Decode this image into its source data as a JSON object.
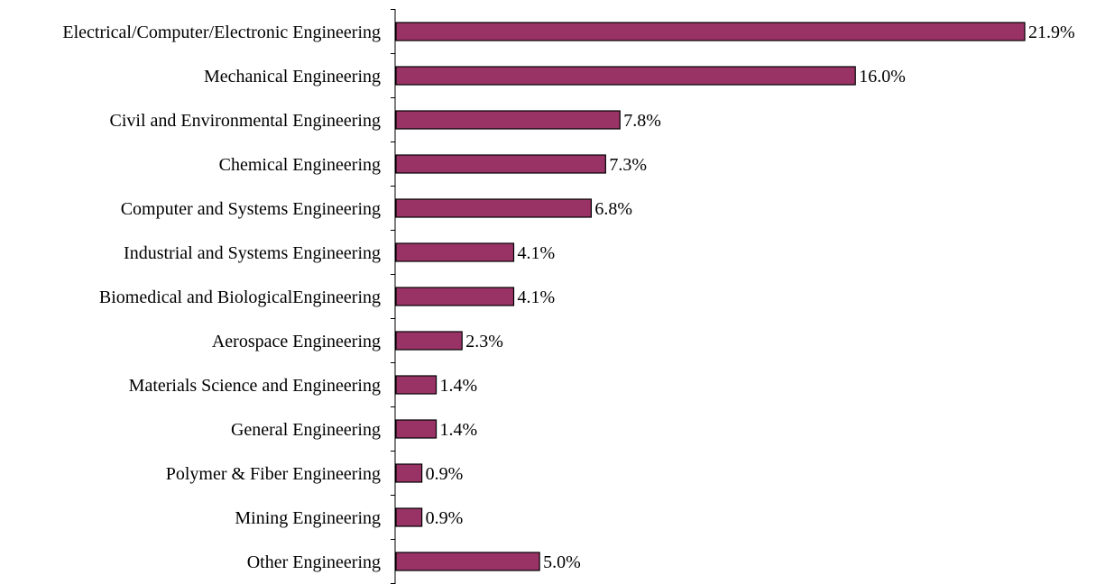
{
  "chart_data": {
    "type": "bar",
    "orientation": "horizontal",
    "categories": [
      "Electrical/Computer/Electronic Engineering",
      "Mechanical Engineering",
      "Civil and Environmental Engineering",
      "Chemical Engineering",
      "Computer and Systems Engineering",
      "Industrial and Systems Engineering",
      "Biomedical and BiologicalEngineering",
      "Aerospace Engineering",
      "Materials Science and Engineering",
      "General Engineering",
      "Polymer & Fiber Engineering",
      "Mining Engineering",
      "Other Engineering"
    ],
    "values": [
      21.9,
      16.0,
      7.8,
      7.3,
      6.8,
      4.1,
      4.1,
      2.3,
      1.4,
      1.4,
      0.9,
      0.9,
      5.0
    ],
    "value_labels": [
      "21.9%",
      "16.0%",
      "7.8%",
      "7.3%",
      "6.8%",
      "4.1%",
      "4.1%",
      "2.3%",
      "1.4%",
      "1.4%",
      "0.9%",
      "0.9%",
      "5.0%"
    ],
    "unit": "%",
    "title": "",
    "xlabel": "",
    "ylabel": "",
    "xlim": [
      0,
      21.9
    ],
    "grid": false,
    "legend": "none",
    "bar_color": "#993366",
    "bar_border_color": "#000000"
  }
}
